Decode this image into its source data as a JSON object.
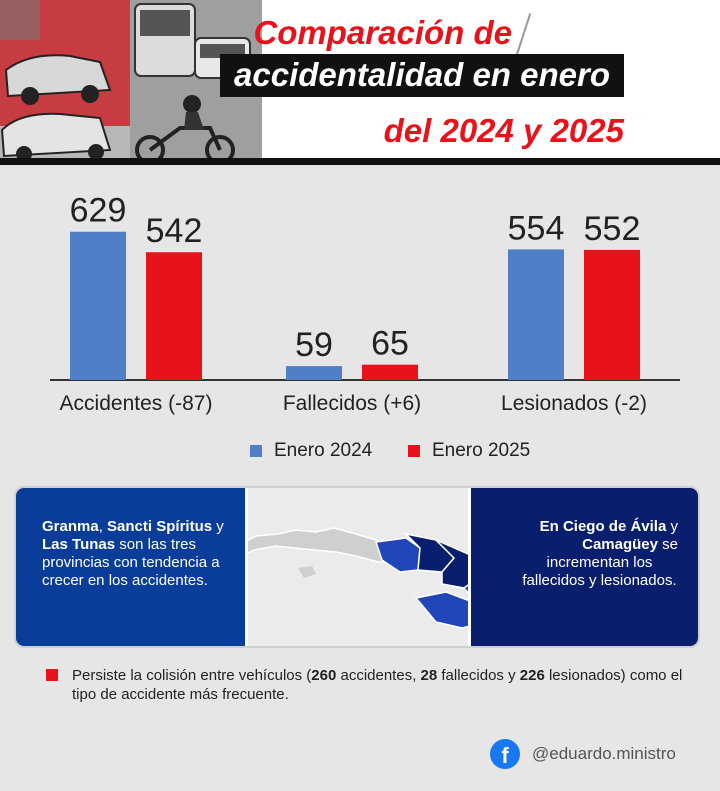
{
  "header": {
    "title_line1": "Comparación de",
    "title_line2": "accidentalidad en enero",
    "title_line3": "del 2024 y 2025"
  },
  "colors": {
    "series_2024": "#4f7fc6",
    "series_2025": "#e8121b",
    "left_box": "#0a3d9a",
    "right_box": "#0a1e6e"
  },
  "chart_data": {
    "type": "bar",
    "categories": [
      "Accidentes (-87)",
      "Fallecidos (+6)",
      "Lesionados (-2)"
    ],
    "series": [
      {
        "name": "Enero 2024",
        "values": [
          629,
          59,
          554
        ]
      },
      {
        "name": "Enero 2025",
        "values": [
          542,
          65,
          552
        ]
      }
    ],
    "ylim": [
      0,
      700
    ],
    "legend_position": "bottom-center",
    "grid": false
  },
  "legend": {
    "item_2024": "Enero 2024",
    "item_2025": "Enero 2025"
  },
  "map_panel": {
    "left_bold_1": "Granma",
    "left_text_1": ", ",
    "left_bold_2": "Sancti Spíritus",
    "left_text_2": " y ",
    "left_bold_3": "Las Tunas",
    "left_text_3": " son las tres provincias con tendencia a crecer en los accidentes.",
    "right_bold_1": "En Ciego de Ávila",
    "right_text_1": " y ",
    "right_bold_2": "Camagüey",
    "right_text_2": " se",
    "right_text_3": "incrementan los fallecidos y lesionados."
  },
  "note": {
    "text_a": "Persiste la colisión entre vehículos (",
    "bold_a": "260",
    "text_b": " accidentes, ",
    "bold_b": "28",
    "text_c": " fallecidos y ",
    "bold_c": "226",
    "text_d": " lesionados) como el tipo de accidente más frecuente."
  },
  "footer": {
    "handle": "@eduardo.ministro",
    "icon": "facebook-icon"
  }
}
